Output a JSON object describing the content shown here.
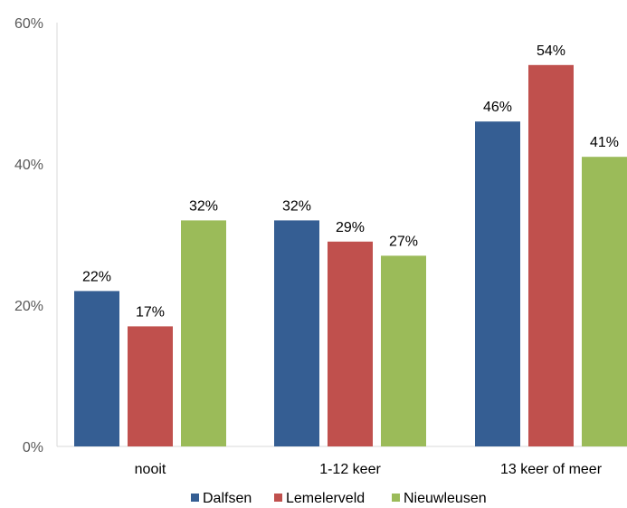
{
  "chart_data": {
    "type": "bar",
    "categories": [
      "nooit",
      "1-12 keer",
      "13 keer of meer"
    ],
    "series": [
      {
        "name": "Dalfsen",
        "values": [
          22,
          32,
          46
        ],
        "labels": [
          "22%",
          "32%",
          "46%"
        ],
        "color": "#355E93"
      },
      {
        "name": "Lemelerveld",
        "values": [
          17,
          29,
          54
        ],
        "labels": [
          "17%",
          "29%",
          "54%"
        ],
        "color": "#C0504D"
      },
      {
        "name": "Nieuwleusen",
        "values": [
          32,
          27,
          41
        ],
        "labels": [
          "32%",
          "27%",
          "41%"
        ],
        "color": "#9BBB59"
      }
    ],
    "y_ticks": [
      0,
      20,
      40,
      60
    ],
    "y_tick_labels": [
      "0%",
      "20%",
      "40%",
      "60%"
    ],
    "ylim": [
      0,
      60
    ],
    "grid": false,
    "legend_position": "bottom",
    "title": "",
    "xlabel": "",
    "ylabel": ""
  }
}
